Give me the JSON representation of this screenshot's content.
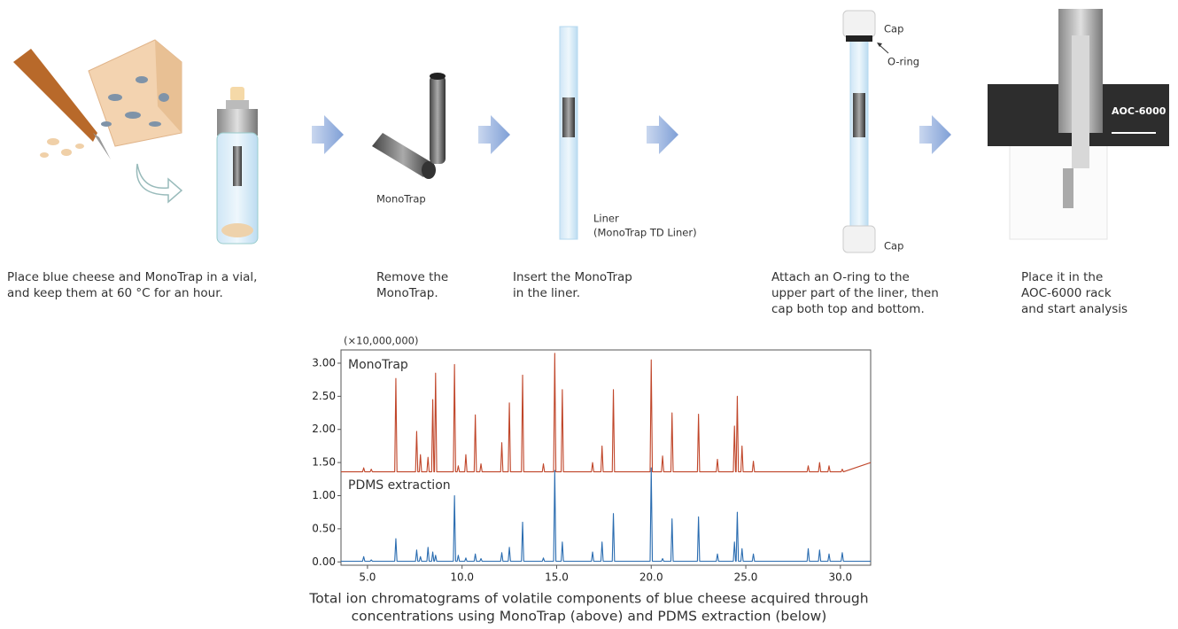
{
  "steps": [
    {
      "caption": [
        "Place blue cheese and MonoTrap in a vial,",
        "and keep them at 60 °C for an hour."
      ]
    },
    {
      "caption": [
        "Remove the",
        "MonoTrap."
      ]
    },
    {
      "caption": [
        "Insert the MonoTrap",
        "in the liner."
      ]
    },
    {
      "caption": [
        "Attach an O-ring to the",
        "upper part of the liner, then",
        "cap both top and bottom."
      ]
    },
    {
      "caption": [
        "Place it in the",
        "AOC-6000 rack",
        "and start analysis"
      ]
    }
  ],
  "illustration_labels": {
    "monotrap": "MonoTrap",
    "liner": [
      "Liner",
      "(MonoTrap TD Liner)"
    ],
    "cap_top": "Cap",
    "o_ring": "O-ring",
    "cap_bottom": "Cap",
    "instrument": "AOC-6000"
  },
  "chart_data": {
    "type": "line",
    "y_unit_label": "(×10,000,000)",
    "x": [
      3.6,
      4.74,
      4.8,
      4.86,
      5.14,
      5.2,
      5.26,
      6.44,
      6.5,
      6.56,
      7.54,
      7.6,
      7.66,
      7.74,
      7.8,
      7.86,
      8.14,
      8.2,
      8.26,
      8.39,
      8.45,
      8.51,
      8.54,
      8.6,
      8.66,
      9.54,
      9.6,
      9.66,
      9.74,
      9.8,
      9.86,
      10.14,
      10.2,
      10.26,
      10.64,
      10.7,
      10.76,
      10.94,
      11.0,
      11.06,
      12.04,
      12.1,
      12.16,
      12.44,
      12.5,
      12.56,
      13.14,
      13.2,
      13.26,
      14.24,
      14.3,
      14.36,
      14.84,
      14.9,
      14.96,
      15.24,
      15.3,
      15.36,
      16.84,
      16.9,
      16.96,
      17.34,
      17.4,
      17.46,
      17.94,
      18.0,
      18.06,
      19.94,
      20.0,
      20.06,
      20.54,
      20.6,
      20.66,
      21.04,
      21.1,
      21.16,
      22.44,
      22.5,
      22.56,
      23.44,
      23.5,
      23.56,
      24.34,
      24.4,
      24.46,
      24.49,
      24.55,
      24.61,
      24.74,
      24.8,
      24.86,
      25.34,
      25.4,
      25.46,
      28.24,
      28.3,
      28.36,
      28.84,
      28.9,
      28.96,
      29.34,
      29.4,
      29.46,
      30.04,
      30.1,
      30.16,
      31.6
    ],
    "series": [
      {
        "name": "MonoTrap",
        "color": "#c0462a",
        "values": [
          1.36,
          1.36,
          1.42,
          1.36,
          1.36,
          1.4,
          1.36,
          1.36,
          2.77,
          1.36,
          1.36,
          1.97,
          1.36,
          1.36,
          1.62,
          1.36,
          1.36,
          1.58,
          1.36,
          1.36,
          2.45,
          1.36,
          1.36,
          2.85,
          1.36,
          1.36,
          2.98,
          1.36,
          1.36,
          1.45,
          1.36,
          1.36,
          1.62,
          1.36,
          1.36,
          2.22,
          1.36,
          1.36,
          1.48,
          1.36,
          1.36,
          1.8,
          1.36,
          1.36,
          2.4,
          1.36,
          1.36,
          2.82,
          1.36,
          1.36,
          1.48,
          1.36,
          1.36,
          3.15,
          1.36,
          1.36,
          2.6,
          1.36,
          1.36,
          1.5,
          1.36,
          1.36,
          1.75,
          1.36,
          1.36,
          2.6,
          1.36,
          1.36,
          3.05,
          1.36,
          1.36,
          1.6,
          1.36,
          1.36,
          2.25,
          1.36,
          1.36,
          2.23,
          1.36,
          1.36,
          1.55,
          1.36,
          1.36,
          2.05,
          1.36,
          1.36,
          2.5,
          1.36,
          1.36,
          1.75,
          1.36,
          1.36,
          1.52,
          1.36,
          1.36,
          1.45,
          1.36,
          1.36,
          1.5,
          1.36,
          1.36,
          1.45,
          1.36,
          1.36,
          1.4,
          1.36,
          1.5
        ]
      },
      {
        "name": "PDMS extraction",
        "color": "#2a6cb0",
        "values": [
          0.01,
          0.01,
          0.08,
          0.01,
          0.01,
          0.03,
          0.01,
          0.01,
          0.35,
          0.01,
          0.01,
          0.18,
          0.01,
          0.01,
          0.08,
          0.01,
          0.01,
          0.22,
          0.01,
          0.01,
          0.15,
          0.01,
          0.01,
          0.1,
          0.01,
          0.01,
          1.0,
          0.01,
          0.01,
          0.1,
          0.01,
          0.01,
          0.06,
          0.01,
          0.01,
          0.12,
          0.01,
          0.01,
          0.05,
          0.01,
          0.01,
          0.14,
          0.01,
          0.01,
          0.22,
          0.01,
          0.01,
          0.6,
          0.01,
          0.01,
          0.06,
          0.01,
          0.01,
          1.38,
          0.01,
          0.01,
          0.3,
          0.01,
          0.01,
          0.15,
          0.01,
          0.01,
          0.3,
          0.01,
          0.01,
          0.73,
          0.01,
          0.01,
          1.42,
          0.01,
          0.01,
          0.05,
          0.01,
          0.01,
          0.65,
          0.01,
          0.01,
          0.68,
          0.01,
          0.01,
          0.12,
          0.01,
          0.01,
          0.3,
          0.01,
          0.01,
          0.75,
          0.01,
          0.01,
          0.2,
          0.01,
          0.01,
          0.12,
          0.01,
          0.01,
          0.2,
          0.01,
          0.01,
          0.18,
          0.01,
          0.01,
          0.12,
          0.01,
          0.01,
          0.14,
          0.01,
          0.01
        ]
      }
    ],
    "xlim": [
      3.6,
      31.6
    ],
    "ylim": [
      -0.05,
      3.2
    ],
    "xticks": [
      {
        "value": 5,
        "label": "5.0"
      },
      {
        "value": 10,
        "label": "10.0"
      },
      {
        "value": 15,
        "label": "15.0"
      },
      {
        "value": 20,
        "label": "20.0"
      },
      {
        "value": 25,
        "label": "25.0"
      },
      {
        "value": 30,
        "label": "30.0"
      }
    ],
    "yticks": [
      {
        "value": 0,
        "label": "0.00"
      },
      {
        "value": 0.5,
        "label": "0.50"
      },
      {
        "value": 1,
        "label": "1.00"
      },
      {
        "value": 1.5,
        "label": "1.50"
      },
      {
        "value": 2,
        "label": "2.00"
      },
      {
        "value": 2.5,
        "label": "2.50"
      },
      {
        "value": 3,
        "label": "3.00"
      }
    ]
  },
  "caption": [
    "Total ion chromatograms of volatile components of blue cheese acquired through",
    "concentrations using MonoTrap (above) and PDMS extraction (below)"
  ]
}
